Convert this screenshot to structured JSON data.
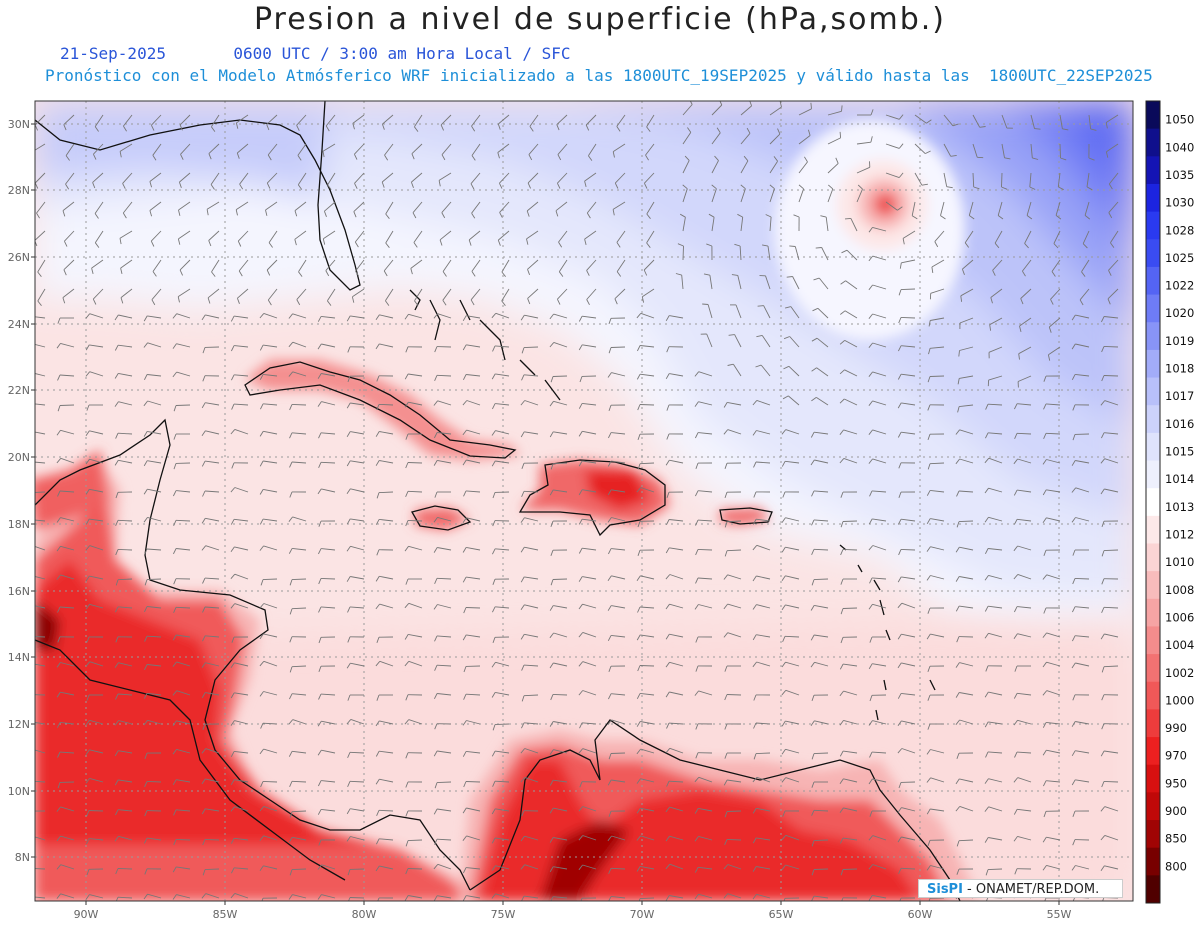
{
  "title": "Presion a nivel de superficie (hPa,somb.)",
  "date": "21-Sep-2025",
  "time_info": "0600 UTC / 3:00 am Hora Local / SFC",
  "description": "Pronóstico con el Modelo Atmósferico WRF inicializado a las 1800UTC_19SEP2025 y válido hasta las  1800UTC_22SEP2025",
  "lat_labels": [
    "30N",
    "28N",
    "26N",
    "24N",
    "22N",
    "20N",
    "18N",
    "16N",
    "14N",
    "12N",
    "10N",
    "8N"
  ],
  "lon_labels": [
    "90W",
    "85W",
    "80W",
    "75W",
    "70W",
    "65W",
    "60W",
    "55W"
  ],
  "colorbar": [
    {
      "label": "1050",
      "color": "#0a0a5a"
    },
    {
      "label": "1040",
      "color": "#0f0f8c"
    },
    {
      "label": "1035",
      "color": "#1414b4"
    },
    {
      "label": "1030",
      "color": "#1c24e0"
    },
    {
      "label": "1028",
      "color": "#2a3af0"
    },
    {
      "label": "1025",
      "color": "#3a4cf2"
    },
    {
      "label": "1022",
      "color": "#5464f4"
    },
    {
      "label": "1020",
      "color": "#6e7cf6"
    },
    {
      "label": "1019",
      "color": "#8894f7"
    },
    {
      "label": "1018",
      "color": "#a2acf9"
    },
    {
      "label": "1017",
      "color": "#b8c0fa"
    },
    {
      "label": "1016",
      "color": "#ccd2fb"
    },
    {
      "label": "1015",
      "color": "#dfe3fc"
    },
    {
      "label": "1014",
      "color": "#eef0fd"
    },
    {
      "label": "1013",
      "color": "#ffffff"
    },
    {
      "label": "1012",
      "color": "#fde9e9"
    },
    {
      "label": "1010",
      "color": "#fbd4d4"
    },
    {
      "label": "1008",
      "color": "#f8bcbc"
    },
    {
      "label": "1006",
      "color": "#f6a4a4"
    },
    {
      "label": "1004",
      "color": "#f48c8c"
    },
    {
      "label": "1002",
      "color": "#f27272"
    },
    {
      "label": "1000",
      "color": "#f05858"
    },
    {
      "label": "990",
      "color": "#ee3c3c"
    },
    {
      "label": "970",
      "color": "#ec2020"
    },
    {
      "label": "950",
      "color": "#d81010"
    },
    {
      "label": "900",
      "color": "#c00808"
    },
    {
      "label": "850",
      "color": "#a00404"
    },
    {
      "label": "800",
      "color": "#780000"
    },
    {
      "label": "",
      "color": "#500000"
    }
  ],
  "credit_brand": "SisPI",
  "credit_text": " - ONAMET/REP.DOM."
}
